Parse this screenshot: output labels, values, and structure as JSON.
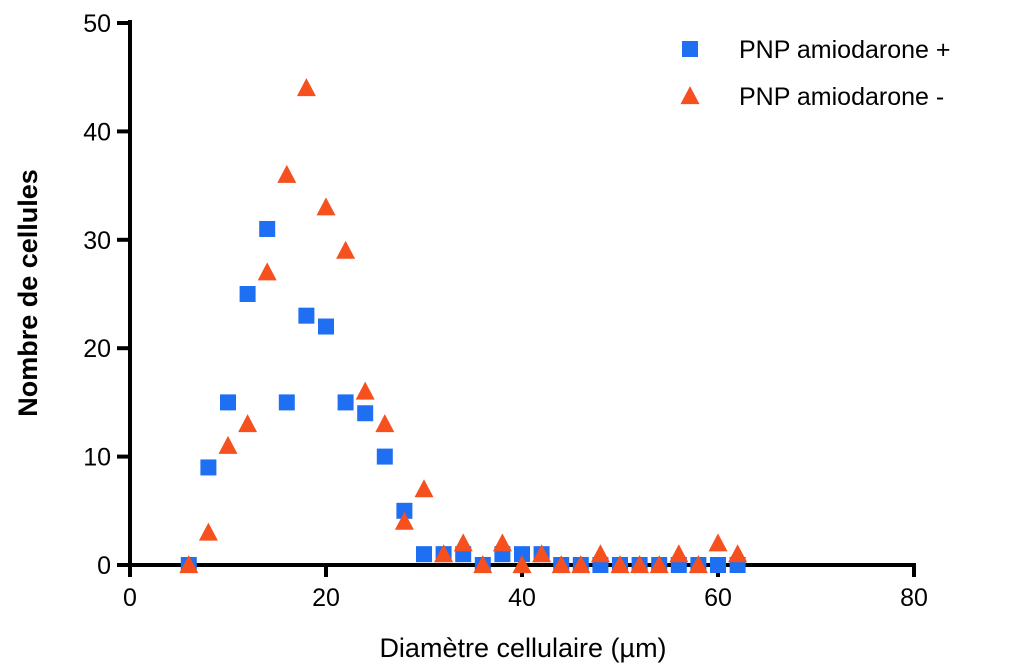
{
  "chart_data": {
    "type": "scatter",
    "xlabel": "Diamètre cellulaire (µm)",
    "ylabel": "Nombre de cellules",
    "xlim": [
      0,
      80
    ],
    "ylim": [
      0,
      50
    ],
    "x_ticks": [
      "0",
      "20",
      "40",
      "60",
      "80"
    ],
    "y_ticks": [
      "0",
      "10",
      "20",
      "30",
      "40",
      "50"
    ],
    "grid": false,
    "legend_position": "top-right",
    "series": [
      {
        "name": "PNP amiodarone +",
        "marker": "square",
        "color": "#1f6ff2",
        "x": [
          6,
          8,
          10,
          12,
          14,
          16,
          18,
          20,
          22,
          24,
          26,
          28,
          30,
          32,
          34,
          36,
          38,
          40,
          42,
          44,
          46,
          48,
          50,
          52,
          54,
          56,
          58,
          60,
          62
        ],
        "y": [
          0,
          9,
          15,
          25,
          31,
          15,
          23,
          22,
          15,
          14,
          10,
          5,
          1,
          1,
          1,
          0,
          1,
          1,
          1,
          0,
          0,
          0,
          0,
          0,
          0,
          0,
          0,
          0,
          0
        ]
      },
      {
        "name": "PNP amiodarone -",
        "marker": "triangle",
        "color": "#f5501e",
        "x": [
          6,
          8,
          10,
          12,
          14,
          16,
          18,
          20,
          22,
          24,
          26,
          28,
          30,
          32,
          34,
          36,
          38,
          40,
          42,
          44,
          46,
          48,
          50,
          52,
          54,
          56,
          58,
          60,
          62
        ],
        "y": [
          0,
          3,
          11,
          13,
          27,
          36,
          44,
          33,
          29,
          16,
          13,
          4,
          7,
          1,
          2,
          0,
          2,
          0,
          1,
          0,
          0,
          1,
          0,
          0,
          0,
          1,
          0,
          2,
          1
        ]
      }
    ]
  }
}
